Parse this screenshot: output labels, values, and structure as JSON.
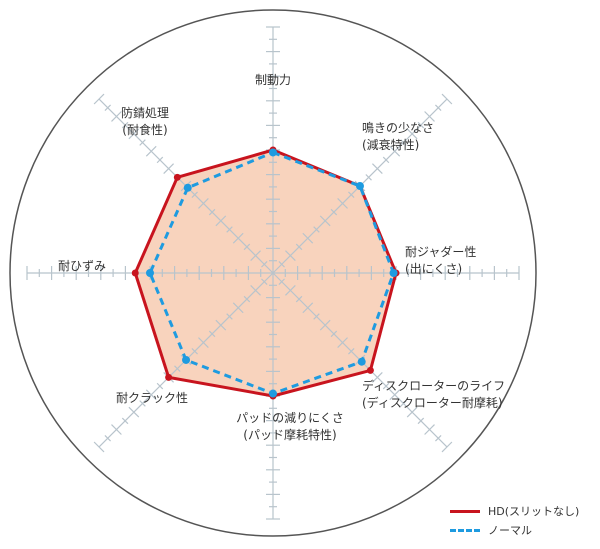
{
  "chart_data": {
    "type": "radar",
    "axes": [
      {
        "label": [
          "制動力"
        ]
      },
      {
        "label": [
          "鳴きの少なさ",
          "(減衰特性)"
        ]
      },
      {
        "label": [
          "耐ジャダー性",
          "(出にくさ)"
        ]
      },
      {
        "label": [
          "ディスクローターのライフ",
          "(ディスクローター耐摩耗)"
        ]
      },
      {
        "label": [
          "パッドの減りにくさ",
          "(パッド摩耗特性)"
        ]
      },
      {
        "label": [
          "耐クラック性"
        ]
      },
      {
        "label": [
          "耐ひずみ"
        ]
      },
      {
        "label": [
          "防錆処理",
          "(耐食性)"
        ]
      }
    ],
    "range": [
      0,
      10
    ],
    "grid": true,
    "legend_position": "bottom-right",
    "series": [
      {
        "name": "HD(スリットなし)",
        "color": "#c8141e",
        "style": "solid",
        "fill": "#f8d3bd",
        "values": [
          5.0,
          5.0,
          5.0,
          5.6,
          5.0,
          6.0,
          5.6,
          5.5
        ]
      },
      {
        "name": "ノーマル",
        "color": "#1e9be0",
        "style": "dashed",
        "values": [
          4.9,
          5.0,
          4.9,
          5.1,
          4.9,
          5.0,
          5.0,
          4.9
        ]
      }
    ]
  }
}
